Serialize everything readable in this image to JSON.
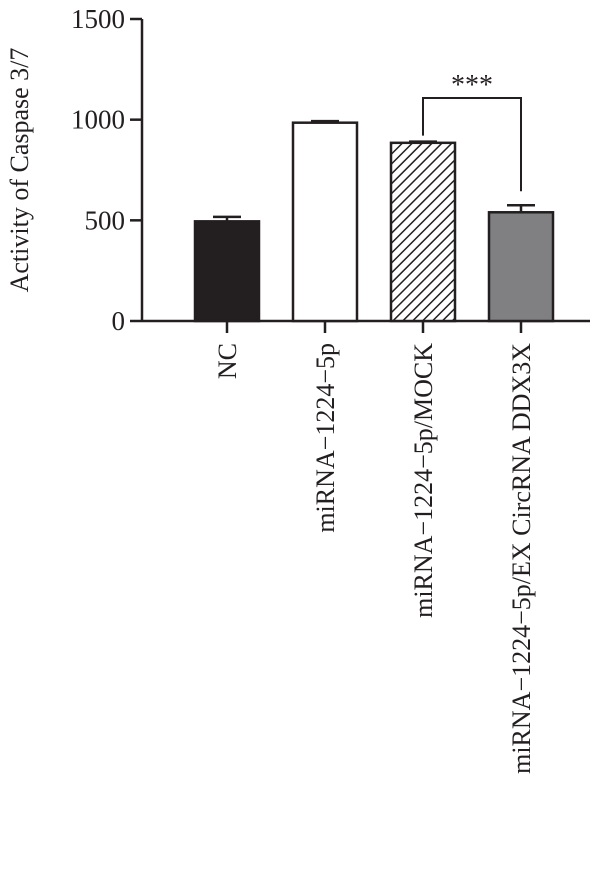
{
  "chart_data": {
    "type": "bar",
    "title": "",
    "xlabel": "",
    "ylabel": "Activity of Caspase 3/7",
    "ylim": [
      0,
      1500
    ],
    "yticks": [
      0,
      500,
      1000,
      1500
    ],
    "categories": [
      "NC",
      "miRNA−1224−5p",
      "miRNA−1224−5p/MOCK",
      "miRNA−1224−5p/EX CircRNA DDX3X"
    ],
    "values": [
      495,
      985,
      885,
      540
    ],
    "errors": [
      22,
      8,
      6,
      35
    ],
    "bar_styles": [
      {
        "fill": "#231f20",
        "pattern": "solid"
      },
      {
        "fill": "#ffffff",
        "pattern": "solid"
      },
      {
        "fill": "#ffffff",
        "pattern": "hatch"
      },
      {
        "fill": "#808083",
        "pattern": "solid"
      }
    ],
    "significance": {
      "from": 2,
      "to": 3,
      "label": "***"
    },
    "grid": false,
    "legend": "none"
  }
}
